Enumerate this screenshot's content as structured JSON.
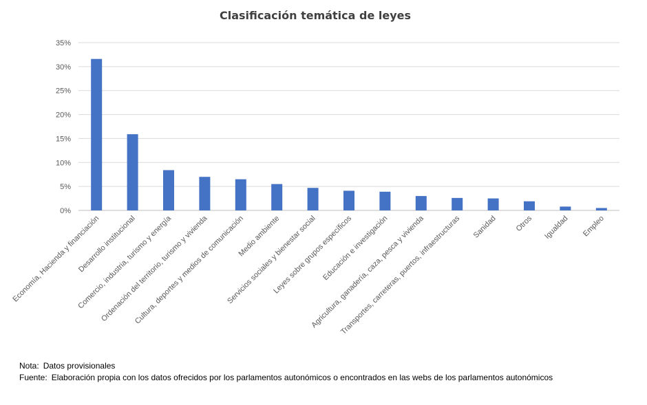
{
  "chart_data": {
    "type": "bar",
    "title": "Clasificación temática de leyes",
    "xlabel": "",
    "ylabel": "",
    "ylim": [
      0,
      35
    ],
    "yticks": [
      "0%",
      "5%",
      "10%",
      "15%",
      "20%",
      "25%",
      "30%",
      "35%"
    ],
    "ytick_values": [
      0,
      5,
      10,
      15,
      20,
      25,
      30,
      35
    ],
    "grid": true,
    "legend": "none",
    "bar_color": "#4472C4",
    "categories": [
      "Economía, Hacienda y financiación",
      "Desarrollo institucional",
      "Comercio, industria, turismo y energía",
      "Ordenación del territorio, turismo y vivienda",
      "Cultura, deportes y medios de comunicación",
      "Medio ambiente",
      "Servicios sociales y bienestar social",
      "Leyes sobre grupos específicos",
      "Educación e investigación",
      "Agricultura, ganadería, caza, pesca y vivienda",
      "Transportes, carreteras, puertos, infraestructuras",
      "Sanidad",
      "Otros",
      "Igualdad",
      "Empleo"
    ],
    "values": [
      31.6,
      15.9,
      8.4,
      7.0,
      6.5,
      5.5,
      4.7,
      4.1,
      3.9,
      3.0,
      2.6,
      2.5,
      1.9,
      0.8,
      0.5
    ]
  },
  "notes": {
    "nota_label": "Nota:",
    "nota_text": "Datos provisionales",
    "fuente_label": "Fuente:",
    "fuente_text": "Elaboración propia con los datos ofrecidos por los parlamentos autonómicos o encontrados en  las webs de los parlamentos autonómicos"
  }
}
